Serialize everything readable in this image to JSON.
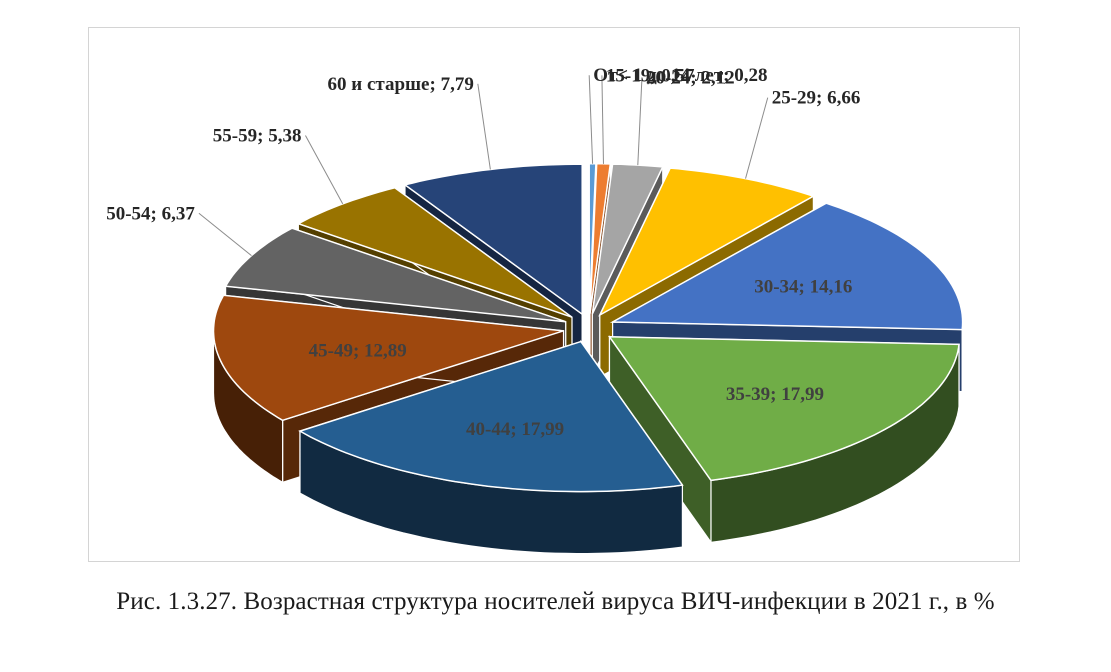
{
  "caption": "Рис. 1.3.27. Возрастная структура носителей вируса ВИЧ-инфекции в 2021 г., в %",
  "chart_data": {
    "type": "pie",
    "title": "",
    "slices": [
      {
        "label": "От< 1 до 14 лет",
        "value": 0.28,
        "display": "От< 1 до 14 лет; 0,28",
        "color": "#5b9bd5"
      },
      {
        "label": "15-19",
        "value": 0.57,
        "display": "15-19; 0,57",
        "color": "#ed7d31"
      },
      {
        "label": "20-24",
        "value": 2.12,
        "display": "20-24; 2,12",
        "color": "#a5a5a5"
      },
      {
        "label": "25-29",
        "value": 6.66,
        "display": "25-29; 6,66",
        "color": "#ffc000"
      },
      {
        "label": "30-34",
        "value": 14.16,
        "display": "30-34; 14,16",
        "color": "#4472c4"
      },
      {
        "label": "35-39",
        "value": 17.99,
        "display": "35-39; 17,99",
        "color": "#70ad47"
      },
      {
        "label": "40-44",
        "value": 17.99,
        "display": "40-44; 17,99",
        "color": "#255e91"
      },
      {
        "label": "45-49",
        "value": 12.89,
        "display": "45-49; 12,89",
        "color": "#9e480e"
      },
      {
        "label": "50-54",
        "value": 6.37,
        "display": "50-54; 6,37",
        "color": "#636363"
      },
      {
        "label": "55-59",
        "value": 5.38,
        "display": "55-59; 5,38",
        "color": "#997300"
      },
      {
        "label": "60 и старше",
        "value": 7.79,
        "display": "60 и старше; 7,79",
        "color": "#264478"
      }
    ],
    "legend": "none",
    "style": "exploded-3d"
  }
}
